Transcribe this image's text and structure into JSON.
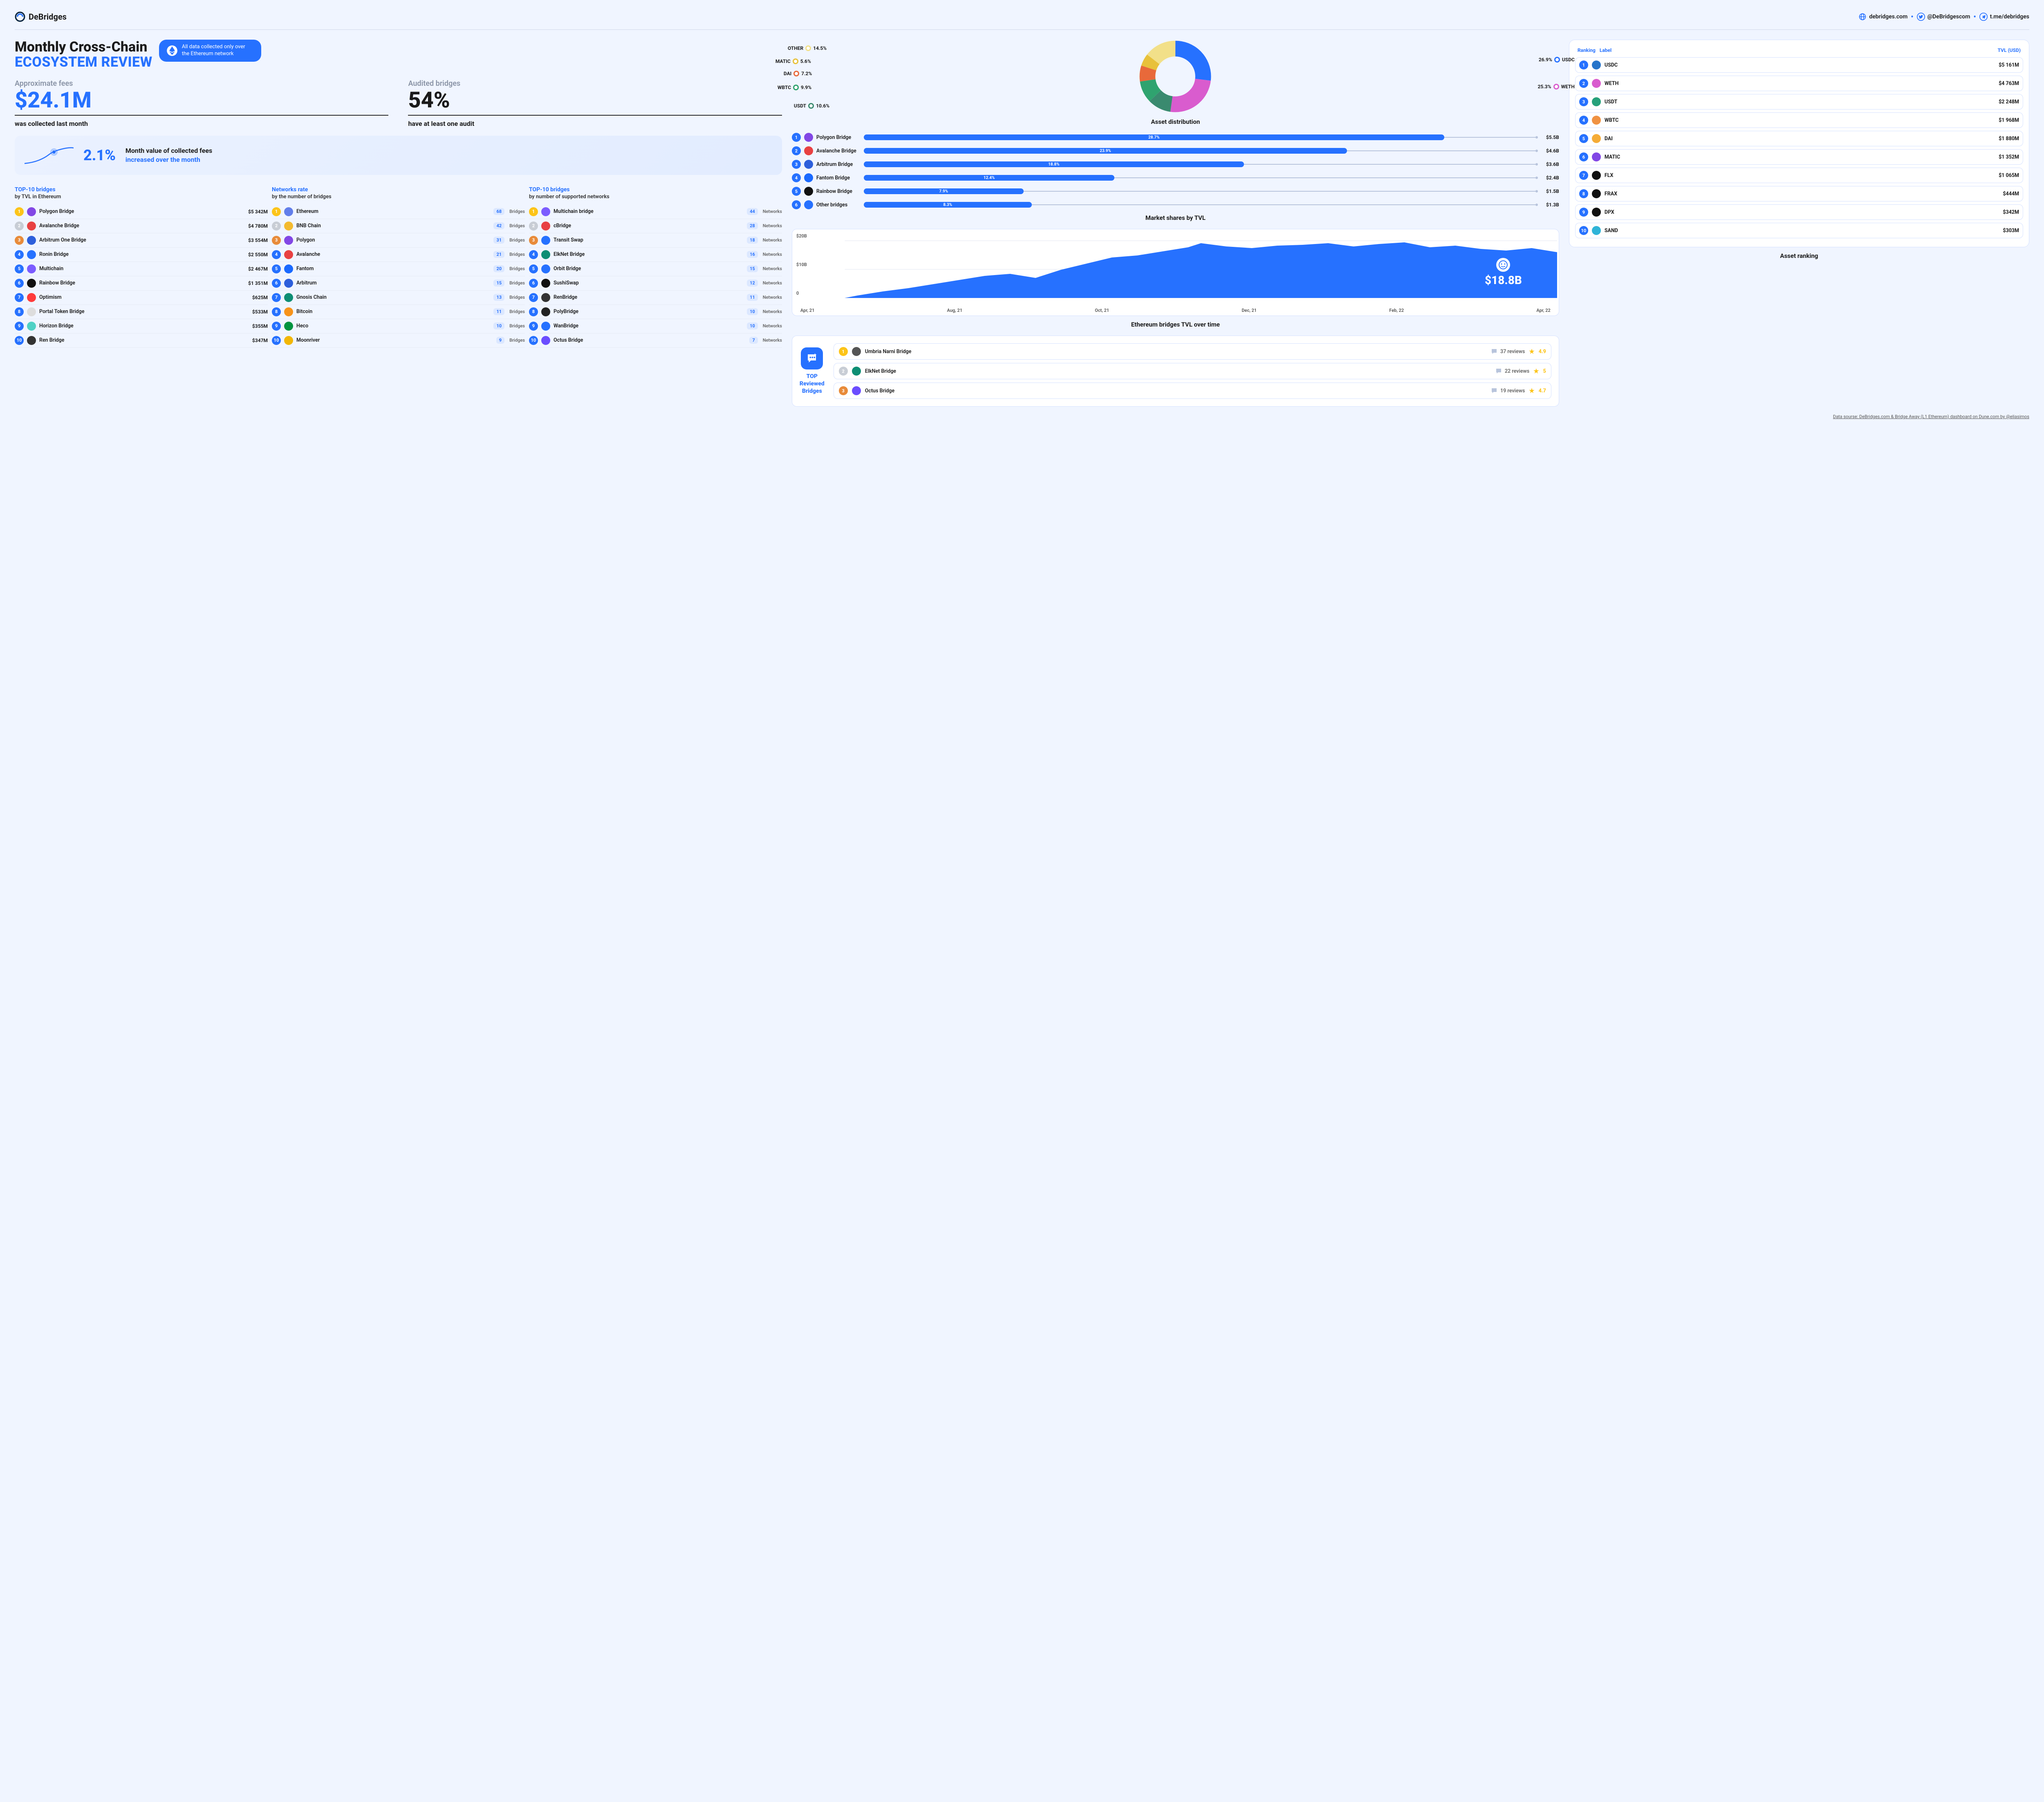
{
  "brand": "DeBridges",
  "header_links": [
    {
      "icon": "globe",
      "text": "debridges.com"
    },
    {
      "icon": "twitter",
      "text": "@DeBridgescom"
    },
    {
      "icon": "telegram",
      "text": "t.me/debridges"
    }
  ],
  "title_line1": "Monthly Cross-Chain",
  "title_line2": "ECOSYSTEM REVIEW",
  "eth_badge": "All data collected only over the Ethereum network",
  "fees": {
    "label": "Approximate fees",
    "value": "$24.1M",
    "sub": "was collected last month"
  },
  "audited": {
    "label": "Audited bridges",
    "value": "54%",
    "sub": "have at least one audit"
  },
  "growth": {
    "pct": "2.1%",
    "text1": "Month value of collected fees",
    "text2": "increased over the month"
  },
  "lists": {
    "col1": {
      "title": "TOP-10 bridges",
      "subtitle": "by TVL in Ethereum",
      "valtype": "money",
      "rows": [
        {
          "name": "Polygon Bridge",
          "val": "$5 342M",
          "color": "#8247e5"
        },
        {
          "name": "Avalanche Bridge",
          "val": "$4 780M",
          "color": "#e84142"
        },
        {
          "name": "Arbitrum One Bridge",
          "val": "$3 554M",
          "color": "#2d5fdb"
        },
        {
          "name": "Ronin Bridge",
          "val": "$2 550M",
          "color": "#2671ff"
        },
        {
          "name": "Multichain",
          "val": "$2 467M",
          "color": "#7b5cff"
        },
        {
          "name": "Rainbow Bridge",
          "val": "$1 351M",
          "color": "#111"
        },
        {
          "name": "Optimism",
          "val": "$625M",
          "color": "#ff3b3b"
        },
        {
          "name": "Portal Token Bridge",
          "val": "$533M",
          "color": "#ddd"
        },
        {
          "name": "Horizon Bridge",
          "val": "$355M",
          "color": "#4fd1c5"
        },
        {
          "name": "Ren Bridge",
          "val": "$347M",
          "color": "#333"
        }
      ]
    },
    "col2": {
      "title": "Networks rate",
      "subtitle": "by the number of bridges",
      "valtype": "bridges",
      "unit": "Bridges",
      "rows": [
        {
          "name": "Ethereum",
          "val": "68",
          "color": "#627eea"
        },
        {
          "name": "BNB Chain",
          "val": "42",
          "color": "#f3ba2f"
        },
        {
          "name": "Polygon",
          "val": "31",
          "color": "#8247e5"
        },
        {
          "name": "Avalanche",
          "val": "21",
          "color": "#e84142"
        },
        {
          "name": "Fantom",
          "val": "20",
          "color": "#1969ff"
        },
        {
          "name": "Arbitrum",
          "val": "15",
          "color": "#2d5fdb"
        },
        {
          "name": "Gnosis Chain",
          "val": "13",
          "color": "#0d8e74"
        },
        {
          "name": "Bitcoin",
          "val": "11",
          "color": "#f7931a"
        },
        {
          "name": "Heco",
          "val": "10",
          "color": "#01943f"
        },
        {
          "name": "Moonriver",
          "val": "9",
          "color": "#f2b705"
        }
      ]
    },
    "col3": {
      "title": "TOP-10 bridges",
      "subtitle": "by number of supported networks",
      "valtype": "networks",
      "unit": "Networks",
      "rows": [
        {
          "name": "Multichain bridge",
          "val": "44",
          "color": "#7b5cff"
        },
        {
          "name": "cBridge",
          "val": "28",
          "color": "#e84142"
        },
        {
          "name": "Transit Swap",
          "val": "18",
          "color": "#2671ff"
        },
        {
          "name": "ElkNet Bridge",
          "val": "16",
          "color": "#0d8e74"
        },
        {
          "name": "Orbit Bridge",
          "val": "15",
          "color": "#2671ff"
        },
        {
          "name": "SushiSwap",
          "val": "12",
          "color": "#111"
        },
        {
          "name": "RenBridge",
          "val": "11",
          "color": "#333"
        },
        {
          "name": "PolyBridge",
          "val": "10",
          "color": "#222"
        },
        {
          "name": "WanBridge",
          "val": "10",
          "color": "#2671ff"
        },
        {
          "name": "Octus Bridge",
          "val": "7",
          "color": "#6b4dff"
        }
      ]
    }
  },
  "donut": {
    "title": "Asset distribution",
    "slices": [
      {
        "label": "USDC",
        "pct": 26.9,
        "color": "#2671ff"
      },
      {
        "label": "WETH",
        "pct": 25.3,
        "color": "#d95cce"
      },
      {
        "label": "USDT",
        "pct": 10.6,
        "color": "#3a8a6f"
      },
      {
        "label": "WBTC",
        "pct": 9.9,
        "color": "#2fa36f"
      },
      {
        "label": "DAI",
        "pct": 7.2,
        "color": "#e8693a"
      },
      {
        "label": "MATIC",
        "pct": 5.6,
        "color": "#e8c13a"
      },
      {
        "label": "OTHER",
        "pct": 14.5,
        "color": "#f2e089"
      }
    ]
  },
  "market_shares": {
    "title": "Market shares by TVL",
    "rows": [
      {
        "rank": 1,
        "name": "Polygon Bridge",
        "pct": 28.7,
        "val": "$5.5B",
        "color": "#8247e5"
      },
      {
        "rank": 2,
        "name": "Avalanche Bridge",
        "pct": 23.9,
        "val": "$4.6B",
        "color": "#e84142"
      },
      {
        "rank": 3,
        "name": "Arbitrum Bridge",
        "pct": 18.8,
        "val": "$3.6B",
        "color": "#2d5fdb"
      },
      {
        "rank": 4,
        "name": "Fantom Bridge",
        "pct": 12.4,
        "val": "$2.4B",
        "color": "#1969ff"
      },
      {
        "rank": 5,
        "name": "Rainbow Bridge",
        "pct": 7.9,
        "val": "$1.5B",
        "color": "#111"
      },
      {
        "rank": 6,
        "name": "Other bridges",
        "pct": 8.3,
        "val": "$1.3B",
        "color": "#2671ff"
      }
    ]
  },
  "area_chart": {
    "title": "Ethereum bridges TVL over time",
    "badge": "$18.8B",
    "yticks": [
      "0",
      "$10B",
      "$20B"
    ],
    "xticks": [
      "Apr, 21",
      "Aug, 21",
      "Oct, 21",
      "Dec, 21",
      "Feb, 22",
      "Apr, 22"
    ],
    "fill": "#2671ff"
  },
  "reviews": {
    "title": "TOP Reviewed Bridges",
    "rows": [
      {
        "rank": 1,
        "name": "Umbria Narni Bridge",
        "reviews": "37 reviews",
        "rating": "4.9",
        "color": "#555"
      },
      {
        "rank": 2,
        "name": "ElkNet Bridge",
        "reviews": "22 reviews",
        "rating": "5",
        "color": "#0d8e74"
      },
      {
        "rank": 3,
        "name": "Octus Bridge",
        "reviews": "19 reviews",
        "rating": "4.7",
        "color": "#6b4dff"
      }
    ]
  },
  "asset_ranking": {
    "title": "Asset ranking",
    "headers": [
      "Ranking",
      "Label",
      "TVL (USD)"
    ],
    "rows": [
      {
        "rank": 1,
        "name": "USDC",
        "val": "$5 161M",
        "color": "#2775ca"
      },
      {
        "rank": 2,
        "name": "WETH",
        "val": "$4 763M",
        "color": "#d95cce"
      },
      {
        "rank": 3,
        "name": "USDT",
        "val": "$2 248M",
        "color": "#26a17b"
      },
      {
        "rank": 4,
        "name": "WBTC",
        "val": "$1 968M",
        "color": "#f09242"
      },
      {
        "rank": 5,
        "name": "DAI",
        "val": "$1 880M",
        "color": "#f5ac37"
      },
      {
        "rank": 6,
        "name": "MATIC",
        "val": "$1 352M",
        "color": "#8247e5"
      },
      {
        "rank": 7,
        "name": "FLX",
        "val": "$1 065M",
        "color": "#111"
      },
      {
        "rank": 8,
        "name": "FRAX",
        "val": "$444M",
        "color": "#111"
      },
      {
        "rank": 9,
        "name": "DPX",
        "val": "$342M",
        "color": "#111"
      },
      {
        "rank": 10,
        "name": "SAND",
        "val": "$303M",
        "color": "#2fb4d8"
      }
    ]
  },
  "footer": "Data sourse: DeBridges.com & Bridge Away (L1 Ethereum) dashboard on Dune.com by @eliasimos"
}
